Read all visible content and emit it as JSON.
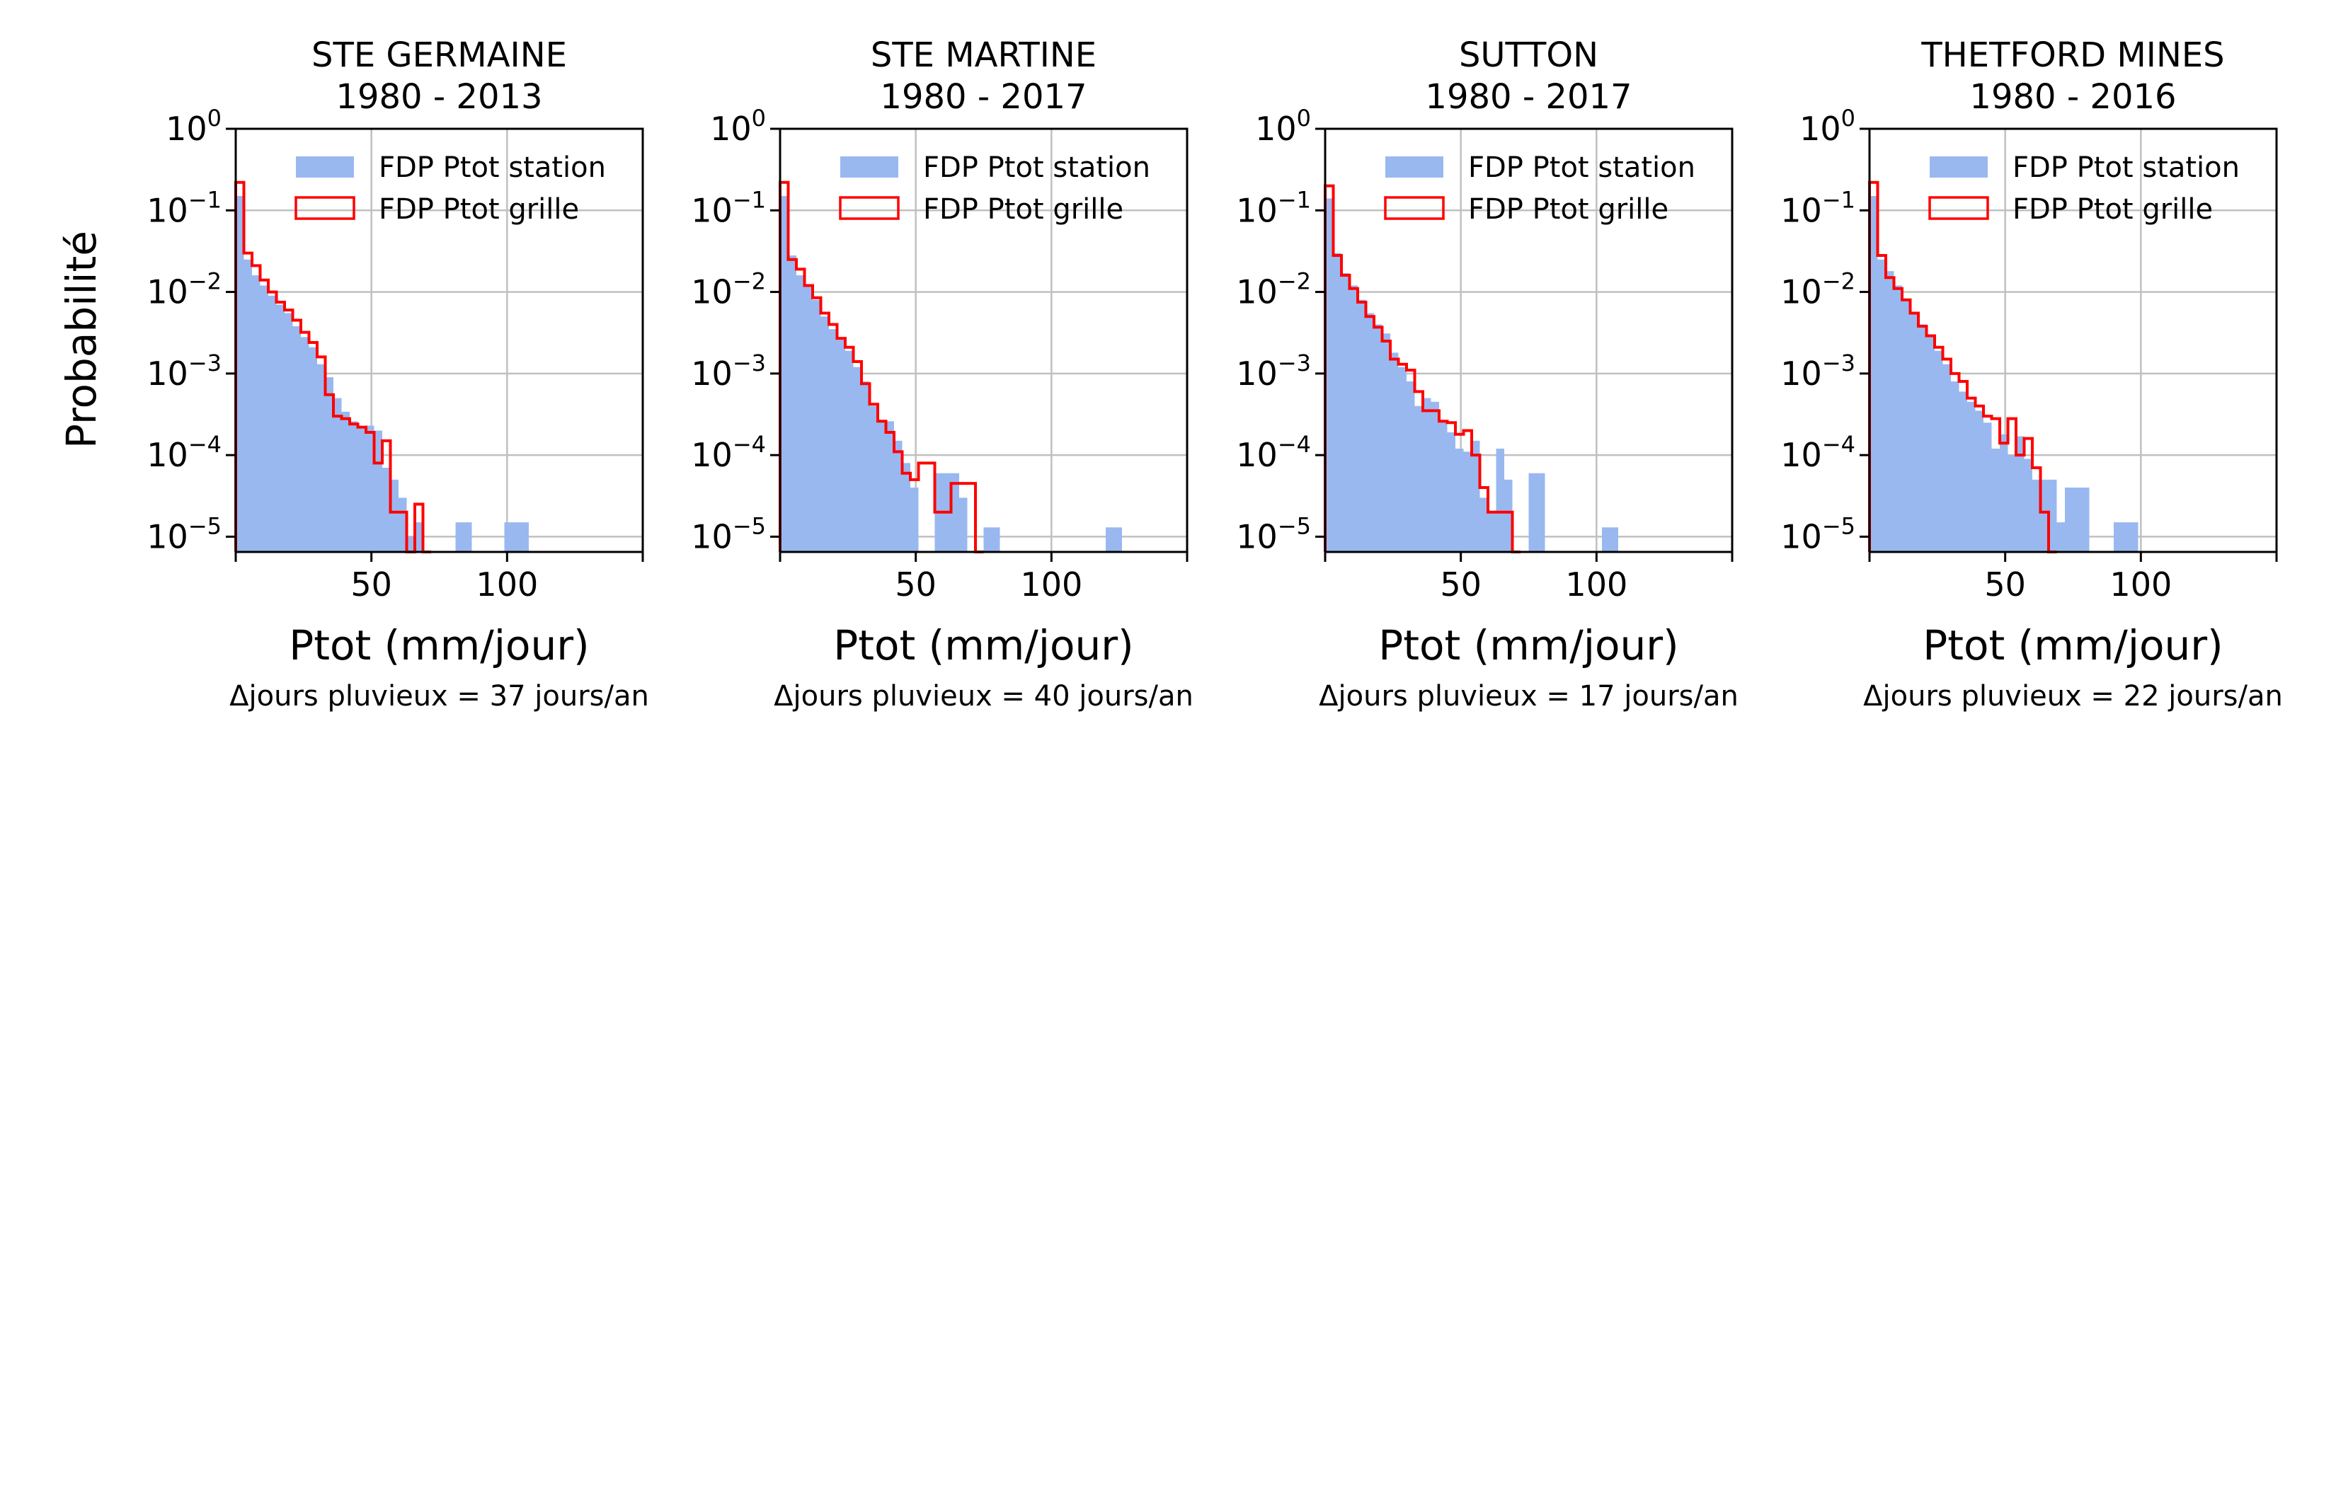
{
  "figure": {
    "ylabel": "Probabilité",
    "xlabel": "Ptot (mm/jour)"
  },
  "legend_labels": [
    "FDP Ptot station",
    "FDP Ptot grille"
  ],
  "colors": {
    "station": "#99b8f0",
    "grille": "#ff0000",
    "grid": "#c0c0c0"
  },
  "chart_data": [
    {
      "type": "histogram",
      "title": "STE GERMAINE",
      "subtitle": "1980 - 2013",
      "xlabel": "Ptot (mm/jour)",
      "ylabel": "Probabilité",
      "xscale": "linear",
      "yscale": "log",
      "xlim": [
        0,
        150
      ],
      "ylim": [
        6.5e-06,
        1.0
      ],
      "xticks": [
        50,
        100
      ],
      "yticks": [
        1,
        0.1,
        0.01,
        0.001,
        0.0001,
        1e-05
      ],
      "bin_width": 3,
      "note": "Δjours pluvieux = 37 jours/an",
      "series": [
        {
          "name": "FDP Ptot station",
          "style": "filled",
          "bins": [
            [
              0,
              3,
              0.15
            ],
            [
              3,
              6,
              0.025
            ],
            [
              6,
              9,
              0.016
            ],
            [
              9,
              12,
              0.012
            ],
            [
              12,
              15,
              0.009
            ],
            [
              15,
              18,
              0.007
            ],
            [
              18,
              21,
              0.0055
            ],
            [
              21,
              24,
              0.0038
            ],
            [
              24,
              27,
              0.0028
            ],
            [
              27,
              30,
              0.0021
            ],
            [
              30,
              33,
              0.0013
            ],
            [
              33,
              36,
              0.0009
            ],
            [
              36,
              39,
              0.0005
            ],
            [
              39,
              42,
              0.00034
            ],
            [
              42,
              45,
              0.00026
            ],
            [
              45,
              48,
              0.00022
            ],
            [
              48,
              51,
              0.00023
            ],
            [
              51,
              54,
              0.0002
            ],
            [
              54,
              57,
              7e-05
            ],
            [
              57,
              60,
              5e-05
            ],
            [
              60,
              63,
              3e-05
            ],
            [
              63,
              66,
              1e-05
            ],
            [
              66,
              69,
              1.5e-05
            ],
            [
              81,
              87,
              1.5e-05
            ],
            [
              99,
              108,
              1.5e-05
            ]
          ]
        },
        {
          "name": "FDP Ptot grille",
          "style": "step",
          "bins": [
            [
              0,
              3,
              0.22
            ],
            [
              3,
              6,
              0.03
            ],
            [
              6,
              9,
              0.021
            ],
            [
              9,
              12,
              0.014
            ],
            [
              12,
              15,
              0.01
            ],
            [
              15,
              18,
              0.0075
            ],
            [
              18,
              21,
              0.006
            ],
            [
              21,
              24,
              0.0045
            ],
            [
              24,
              27,
              0.0032
            ],
            [
              27,
              30,
              0.0024
            ],
            [
              30,
              33,
              0.0016
            ],
            [
              33,
              36,
              0.00055
            ],
            [
              36,
              39,
              0.0003
            ],
            [
              39,
              42,
              0.00028
            ],
            [
              42,
              45,
              0.00024
            ],
            [
              45,
              48,
              0.00022
            ],
            [
              48,
              51,
              0.00019
            ],
            [
              51,
              54,
              8e-05
            ],
            [
              54,
              57,
              0.00015
            ],
            [
              57,
              60,
              2e-05
            ],
            [
              60,
              63,
              2e-05
            ],
            [
              63,
              66,
              6.5e-06
            ],
            [
              66,
              69,
              2.5e-05
            ],
            [
              69,
              72,
              6.5e-06
            ]
          ]
        }
      ]
    },
    {
      "type": "histogram",
      "title": "STE MARTINE",
      "subtitle": "1980 - 2017",
      "xlabel": "Ptot (mm/jour)",
      "ylabel": "",
      "xscale": "linear",
      "yscale": "log",
      "xlim": [
        0,
        150
      ],
      "ylim": [
        6.5e-06,
        1.0
      ],
      "xticks": [
        50,
        100
      ],
      "yticks": [
        1,
        0.1,
        0.01,
        0.001,
        0.0001,
        1e-05
      ],
      "bin_width": 3,
      "note": "Δjours pluvieux = 40 jours/an",
      "series": [
        {
          "name": "FDP Ptot station",
          "style": "filled",
          "bins": [
            [
              0,
              3,
              0.15
            ],
            [
              3,
              6,
              0.028
            ],
            [
              6,
              9,
              0.016
            ],
            [
              9,
              12,
              0.012
            ],
            [
              12,
              15,
              0.008
            ],
            [
              15,
              18,
              0.005
            ],
            [
              18,
              21,
              0.0035
            ],
            [
              21,
              24,
              0.0026
            ],
            [
              24,
              27,
              0.0019
            ],
            [
              27,
              30,
              0.0012
            ],
            [
              30,
              33,
              0.0008
            ],
            [
              33,
              36,
              0.0004
            ],
            [
              36,
              39,
              0.00027
            ],
            [
              39,
              42,
              0.00026
            ],
            [
              42,
              45,
              0.00015
            ],
            [
              45,
              48,
              8e-05
            ],
            [
              48,
              51,
              4e-05
            ],
            [
              57,
              60,
              6e-05
            ],
            [
              60,
              66,
              6e-05
            ],
            [
              66,
              69,
              3e-05
            ],
            [
              75,
              81,
              1.3e-05
            ],
            [
              120,
              126,
              1.3e-05
            ]
          ]
        },
        {
          "name": "FDP Ptot grille",
          "style": "step",
          "bins": [
            [
              0,
              3,
              0.22
            ],
            [
              3,
              6,
              0.025
            ],
            [
              6,
              9,
              0.019
            ],
            [
              9,
              12,
              0.012
            ],
            [
              12,
              15,
              0.0085
            ],
            [
              15,
              18,
              0.0055
            ],
            [
              18,
              21,
              0.004
            ],
            [
              21,
              24,
              0.0027
            ],
            [
              24,
              27,
              0.0021
            ],
            [
              27,
              30,
              0.0014
            ],
            [
              30,
              33,
              0.00075
            ],
            [
              33,
              36,
              0.00042
            ],
            [
              36,
              39,
              0.00026
            ],
            [
              39,
              42,
              0.00019
            ],
            [
              42,
              45,
              0.00011
            ],
            [
              45,
              48,
              6e-05
            ],
            [
              48,
              51,
              5e-05
            ],
            [
              51,
              54,
              8e-05
            ],
            [
              54,
              57,
              8e-05
            ],
            [
              57,
              60,
              2e-05
            ],
            [
              60,
              63,
              2e-05
            ],
            [
              63,
              72,
              4.5e-05
            ],
            [
              72,
              75,
              6.5e-06
            ]
          ]
        }
      ]
    },
    {
      "type": "histogram",
      "title": "SUTTON",
      "subtitle": "1980 - 2017",
      "xlabel": "Ptot (mm/jour)",
      "ylabel": "",
      "xscale": "linear",
      "yscale": "log",
      "xlim": [
        0,
        150
      ],
      "ylim": [
        6.5e-06,
        1.0
      ],
      "xticks": [
        50,
        100
      ],
      "yticks": [
        1,
        0.1,
        0.01,
        0.001,
        0.0001,
        1e-05
      ],
      "bin_width": 3,
      "note": "Δjours pluvieux = 17 jours/an",
      "series": [
        {
          "name": "FDP Ptot station",
          "style": "filled",
          "bins": [
            [
              0,
              3,
              0.14
            ],
            [
              3,
              6,
              0.03
            ],
            [
              6,
              9,
              0.017
            ],
            [
              9,
              12,
              0.012
            ],
            [
              12,
              15,
              0.008
            ],
            [
              15,
              18,
              0.0055
            ],
            [
              18,
              21,
              0.004
            ],
            [
              21,
              24,
              0.0031
            ],
            [
              24,
              27,
              0.0018
            ],
            [
              27,
              30,
              0.0012
            ],
            [
              30,
              33,
              0.0008
            ],
            [
              33,
              36,
              0.0004
            ],
            [
              36,
              39,
              0.0005
            ],
            [
              39,
              42,
              0.00045
            ],
            [
              42,
              45,
              0.00026
            ],
            [
              45,
              48,
              0.00019
            ],
            [
              48,
              51,
              0.00012
            ],
            [
              51,
              54,
              0.00011
            ],
            [
              54,
              57,
              0.00015
            ],
            [
              57,
              60,
              3e-05
            ],
            [
              60,
              63,
              2e-05
            ],
            [
              63,
              66,
              0.00012
            ],
            [
              66,
              69,
              5e-05
            ],
            [
              75,
              81,
              6e-05
            ],
            [
              102,
              108,
              1.3e-05
            ]
          ]
        },
        {
          "name": "FDP Ptot grille",
          "style": "step",
          "bins": [
            [
              0,
              3,
              0.2
            ],
            [
              3,
              6,
              0.028
            ],
            [
              6,
              9,
              0.016
            ],
            [
              9,
              12,
              0.011
            ],
            [
              12,
              15,
              0.0075
            ],
            [
              15,
              18,
              0.005
            ],
            [
              18,
              21,
              0.0037
            ],
            [
              21,
              24,
              0.0025
            ],
            [
              24,
              27,
              0.0015
            ],
            [
              27,
              30,
              0.0013
            ],
            [
              30,
              33,
              0.0011
            ],
            [
              33,
              36,
              0.0006
            ],
            [
              36,
              39,
              0.00035
            ],
            [
              39,
              42,
              0.00035
            ],
            [
              42,
              45,
              0.00026
            ],
            [
              45,
              48,
              0.00025
            ],
            [
              48,
              51,
              0.00018
            ],
            [
              51,
              54,
              0.0002
            ],
            [
              54,
              57,
              0.0001
            ],
            [
              57,
              60,
              4e-05
            ],
            [
              60,
              63,
              2e-05
            ],
            [
              63,
              66,
              2e-05
            ],
            [
              66,
              69,
              2e-05
            ],
            [
              69,
              72,
              6.5e-06
            ]
          ]
        }
      ]
    },
    {
      "type": "histogram",
      "title": "THETFORD MINES",
      "subtitle": "1980 - 2016",
      "xlabel": "Ptot (mm/jour)",
      "ylabel": "",
      "xscale": "linear",
      "yscale": "log",
      "xlim": [
        0,
        150
      ],
      "ylim": [
        6.5e-06,
        1.0
      ],
      "xticks": [
        50,
        100
      ],
      "yticks": [
        1,
        0.1,
        0.01,
        0.001,
        0.0001,
        1e-05
      ],
      "bin_width": 3,
      "note": "Δjours pluvieux = 22 jours/an",
      "series": [
        {
          "name": "FDP Ptot station",
          "style": "filled",
          "bins": [
            [
              0,
              3,
              0.15
            ],
            [
              3,
              6,
              0.025
            ],
            [
              6,
              9,
              0.018
            ],
            [
              9,
              12,
              0.012
            ],
            [
              12,
              15,
              0.008
            ],
            [
              15,
              18,
              0.0055
            ],
            [
              18,
              21,
              0.004
            ],
            [
              21,
              24,
              0.0028
            ],
            [
              24,
              27,
              0.0019
            ],
            [
              27,
              30,
              0.0013
            ],
            [
              30,
              33,
              0.0008
            ],
            [
              33,
              36,
              0.0006
            ],
            [
              36,
              39,
              0.00045
            ],
            [
              39,
              42,
              0.00035
            ],
            [
              42,
              45,
              0.00025
            ],
            [
              45,
              48,
              0.00012
            ],
            [
              48,
              51,
              0.00018
            ],
            [
              51,
              54,
              0.0001
            ],
            [
              54,
              57,
              0.00017
            ],
            [
              57,
              60,
              9e-05
            ],
            [
              60,
              66,
              5e-05
            ],
            [
              66,
              69,
              5e-05
            ],
            [
              69,
              72,
              1.5e-05
            ],
            [
              72,
              75,
              4e-05
            ],
            [
              75,
              81,
              4e-05
            ],
            [
              90,
              99,
              1.5e-05
            ]
          ]
        },
        {
          "name": "FDP Ptot grille",
          "style": "step",
          "bins": [
            [
              0,
              3,
              0.22
            ],
            [
              3,
              6,
              0.028
            ],
            [
              6,
              9,
              0.015
            ],
            [
              9,
              12,
              0.011
            ],
            [
              12,
              15,
              0.008
            ],
            [
              15,
              18,
              0.0055
            ],
            [
              18,
              21,
              0.0038
            ],
            [
              21,
              24,
              0.0029
            ],
            [
              24,
              27,
              0.0021
            ],
            [
              27,
              30,
              0.0015
            ],
            [
              30,
              33,
              0.001
            ],
            [
              33,
              36,
              0.0008
            ],
            [
              36,
              39,
              0.0005
            ],
            [
              39,
              42,
              0.0004
            ],
            [
              42,
              45,
              0.0003
            ],
            [
              45,
              48,
              0.00028
            ],
            [
              48,
              51,
              0.00014
            ],
            [
              51,
              54,
              0.00028
            ],
            [
              54,
              57,
              0.0001
            ],
            [
              57,
              60,
              0.00016
            ],
            [
              60,
              63,
              7e-05
            ],
            [
              63,
              66,
              2e-05
            ],
            [
              66,
              69,
              6.5e-06
            ]
          ]
        }
      ]
    }
  ]
}
